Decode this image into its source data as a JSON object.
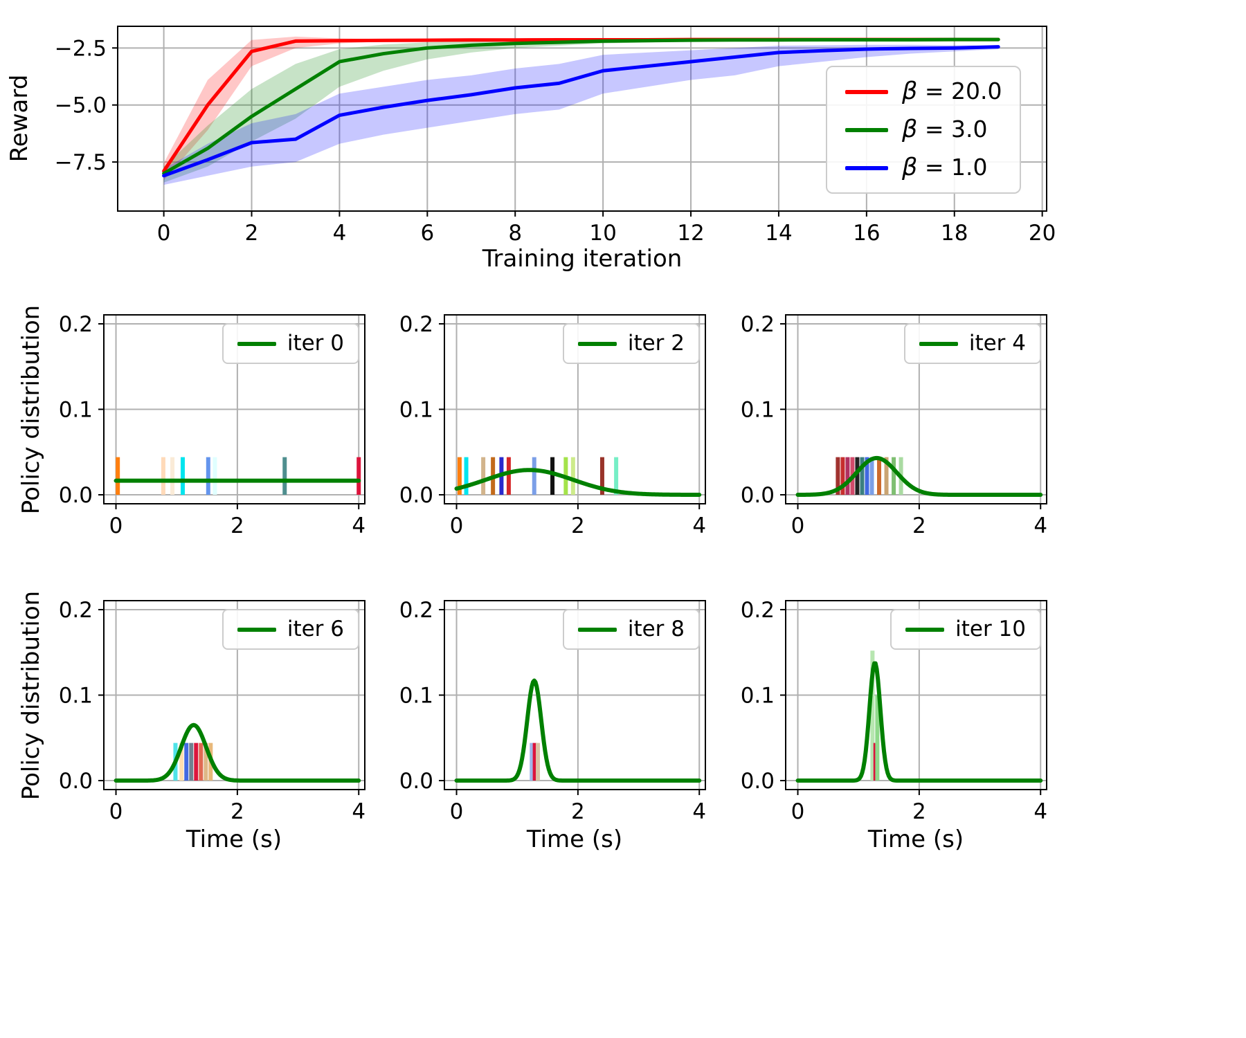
{
  "figure": {
    "background": "#ffffff",
    "grid_color": "#b0b0b0",
    "spine_color": "#000000",
    "curve_color": "#008000"
  },
  "chart_data": [
    {
      "id": "reward_curve",
      "type": "line",
      "title": "",
      "xlabel": "Training iteration",
      "ylabel": "Reward",
      "grid": true,
      "legend_loc": "center right",
      "xlim": [
        -1.05,
        20.1
      ],
      "ylim": [
        -9.65,
        -1.55
      ],
      "xticks": [
        {
          "v": 0,
          "label": "0"
        },
        {
          "v": 2,
          "label": "2"
        },
        {
          "v": 4,
          "label": "4"
        },
        {
          "v": 6,
          "label": "6"
        },
        {
          "v": 8,
          "label": "8"
        },
        {
          "v": 10,
          "label": "10"
        },
        {
          "v": 12,
          "label": "12"
        },
        {
          "v": 14,
          "label": "14"
        },
        {
          "v": 16,
          "label": "16"
        },
        {
          "v": 18,
          "label": "18"
        },
        {
          "v": 20,
          "label": "20"
        }
      ],
      "yticks": [
        {
          "v": -2.5,
          "label": "−2.5"
        },
        {
          "v": -5.0,
          "label": "−5.0"
        },
        {
          "v": -7.5,
          "label": "−7.5"
        }
      ],
      "x": [
        0,
        1,
        2,
        3,
        4,
        5,
        6,
        7,
        8,
        9,
        10,
        11,
        12,
        13,
        14,
        15,
        16,
        17,
        18,
        19
      ],
      "series": [
        {
          "name": "β = 20.0",
          "label_symbol": "β",
          "label_rest": " = 20.0",
          "color": "#ff0000",
          "band_alpha": 0.22,
          "mean": [
            -7.9,
            -5.0,
            -2.65,
            -2.2,
            -2.18,
            -2.17,
            -2.16,
            -2.15,
            -2.15,
            -2.14,
            -2.14,
            -2.14,
            -2.13,
            -2.13,
            -2.13,
            -2.13,
            -2.13,
            -2.13,
            -2.13,
            -2.13
          ],
          "upper": [
            -7.55,
            -3.9,
            -2.15,
            -2.0,
            -2.08,
            -2.12,
            -2.13,
            -2.12,
            -2.12,
            -2.12,
            -2.12,
            -2.12,
            -2.12,
            -2.12,
            -2.12,
            -2.12,
            -2.12,
            -2.12,
            -2.12,
            -2.12
          ],
          "lower": [
            -8.3,
            -6.1,
            -3.3,
            -2.5,
            -2.3,
            -2.22,
            -2.19,
            -2.18,
            -2.17,
            -2.16,
            -2.16,
            -2.15,
            -2.15,
            -2.14,
            -2.14,
            -2.14,
            -2.14,
            -2.14,
            -2.14,
            -2.14
          ]
        },
        {
          "name": "β = 3.0",
          "label_symbol": "β",
          "label_rest": " = 3.0",
          "color": "#008000",
          "band_alpha": 0.22,
          "mean": [
            -8.0,
            -6.9,
            -5.5,
            -4.3,
            -3.1,
            -2.75,
            -2.5,
            -2.38,
            -2.3,
            -2.25,
            -2.2,
            -2.18,
            -2.16,
            -2.15,
            -2.15,
            -2.14,
            -2.14,
            -2.14,
            -2.13,
            -2.13
          ],
          "upper": [
            -7.7,
            -5.9,
            -4.3,
            -3.2,
            -2.55,
            -2.35,
            -2.25,
            -2.2,
            -2.17,
            -2.15,
            -2.14,
            -2.13,
            -2.13,
            -2.12,
            -2.12,
            -2.12,
            -2.12,
            -2.12,
            -2.12,
            -2.12
          ],
          "lower": [
            -8.4,
            -7.7,
            -6.6,
            -5.6,
            -4.2,
            -3.5,
            -3.0,
            -2.7,
            -2.5,
            -2.4,
            -2.3,
            -2.26,
            -2.2,
            -2.18,
            -2.17,
            -2.16,
            -2.16,
            -2.15,
            -2.15,
            -2.14
          ]
        },
        {
          "name": "β = 1.0",
          "label_symbol": "β",
          "label_rest": " = 1.0",
          "color": "#0000ff",
          "band_alpha": 0.22,
          "mean": [
            -8.1,
            -7.4,
            -6.65,
            -6.5,
            -5.45,
            -5.1,
            -4.8,
            -4.55,
            -4.25,
            -4.05,
            -3.5,
            -3.3,
            -3.1,
            -2.9,
            -2.7,
            -2.62,
            -2.55,
            -2.52,
            -2.5,
            -2.45
          ],
          "upper": [
            -7.8,
            -6.7,
            -5.8,
            -5.4,
            -4.5,
            -4.2,
            -3.9,
            -3.7,
            -3.4,
            -3.2,
            -2.8,
            -2.7,
            -2.6,
            -2.5,
            -2.4,
            -2.38,
            -2.36,
            -2.36,
            -2.38,
            -2.4
          ],
          "lower": [
            -8.5,
            -8.1,
            -7.7,
            -7.5,
            -6.7,
            -6.3,
            -6.0,
            -5.7,
            -5.4,
            -5.2,
            -4.5,
            -4.2,
            -3.9,
            -3.7,
            -3.3,
            -3.1,
            -2.9,
            -2.75,
            -2.65,
            -2.55
          ]
        }
      ]
    },
    {
      "id": "policy_iter_0",
      "type": "line",
      "legend_label": "iter 0",
      "ylabel": "Policy distribution",
      "xlim": [
        -0.2,
        4.1
      ],
      "ylim": [
        -0.0105,
        0.2105
      ],
      "xticks": [
        {
          "v": 0,
          "label": "0"
        },
        {
          "v": 2,
          "label": "2"
        },
        {
          "v": 4,
          "label": "4"
        }
      ],
      "yticks": [
        {
          "v": 0,
          "label": "0.0"
        },
        {
          "v": 0.1,
          "label": "0.1"
        },
        {
          "v": 0.2,
          "label": "0.2"
        }
      ],
      "curve": {
        "shape": "flat",
        "value": 0.0165,
        "x_start": 0,
        "x_end": 4,
        "color": "#008000"
      },
      "bars": {
        "height_default": 0.044,
        "items": [
          {
            "x": 0.03,
            "color": "#ff7f0e"
          },
          {
            "x": 0.78,
            "color": "#ffdab9"
          },
          {
            "x": 0.93,
            "color": "#faebd7"
          },
          {
            "x": 1.1,
            "color": "#00e5ee"
          },
          {
            "x": 1.52,
            "color": "#6495ed"
          },
          {
            "x": 1.63,
            "color": "#e0ffff"
          },
          {
            "x": 2.78,
            "color": "#4f8f8f"
          },
          {
            "x": 4.0,
            "color": "#dc143c"
          }
        ]
      }
    },
    {
      "id": "policy_iter_2",
      "type": "line",
      "legend_label": "iter 2",
      "xlim": [
        -0.2,
        4.1
      ],
      "ylim": [
        -0.0105,
        0.2105
      ],
      "xticks": [
        {
          "v": 0,
          "label": "0"
        },
        {
          "v": 2,
          "label": "2"
        },
        {
          "v": 4,
          "label": "4"
        }
      ],
      "yticks": [
        {
          "v": 0,
          "label": "0.0"
        },
        {
          "v": 0.1,
          "label": "0.1"
        },
        {
          "v": 0.2,
          "label": "0.2"
        }
      ],
      "curve": {
        "shape": "gaussian",
        "center": 1.2,
        "sigma": 0.72,
        "peak": 0.029,
        "x_start": 0,
        "x_end": 4,
        "color": "#008000"
      },
      "bars": {
        "height_default": 0.044,
        "items": [
          {
            "x": 0.05,
            "color": "#ff7f0e"
          },
          {
            "x": 0.16,
            "color": "#00e5ee"
          },
          {
            "x": 0.44,
            "color": "#d2b48c"
          },
          {
            "x": 0.6,
            "color": "#c26a1b"
          },
          {
            "x": 0.74,
            "color": "#2929cc"
          },
          {
            "x": 0.86,
            "color": "#d62728"
          },
          {
            "x": 1.28,
            "color": "#7b9fe8"
          },
          {
            "x": 1.58,
            "color": "#111111"
          },
          {
            "x": 1.8,
            "color": "#a4e34a"
          },
          {
            "x": 1.92,
            "color": "#cdeb8b"
          },
          {
            "x": 2.4,
            "color": "#993329"
          },
          {
            "x": 2.63,
            "color": "#76eec6"
          }
        ]
      }
    },
    {
      "id": "policy_iter_4",
      "type": "line",
      "legend_label": "iter 4",
      "xlim": [
        -0.2,
        4.1
      ],
      "ylim": [
        -0.0105,
        0.2105
      ],
      "xticks": [
        {
          "v": 0,
          "label": "0"
        },
        {
          "v": 2,
          "label": "2"
        },
        {
          "v": 4,
          "label": "4"
        }
      ],
      "yticks": [
        {
          "v": 0,
          "label": "0.0"
        },
        {
          "v": 0.1,
          "label": "0.1"
        },
        {
          "v": 0.2,
          "label": "0.2"
        }
      ],
      "curve": {
        "shape": "gaussian",
        "center": 1.3,
        "sigma": 0.33,
        "peak": 0.043,
        "x_start": 0,
        "x_end": 4,
        "color": "#008000"
      },
      "bars": {
        "height_default": 0.044,
        "items": [
          {
            "x": 0.66,
            "color": "#a0322f"
          },
          {
            "x": 0.74,
            "color": "#c62e2e"
          },
          {
            "x": 0.82,
            "color": "#b03060"
          },
          {
            "x": 0.9,
            "color": "#d14a6a"
          },
          {
            "x": 0.98,
            "color": "#222222"
          },
          {
            "x": 1.06,
            "color": "#3b7f7f"
          },
          {
            "x": 1.14,
            "color": "#4169e1"
          },
          {
            "x": 1.22,
            "color": "#7b9fe8"
          },
          {
            "x": 1.34,
            "color": "#cd6a2d"
          },
          {
            "x": 1.46,
            "color": "#caa472"
          },
          {
            "x": 1.58,
            "color": "#7fbf72"
          },
          {
            "x": 1.7,
            "color": "#aadba2"
          }
        ]
      }
    },
    {
      "id": "policy_iter_6",
      "type": "line",
      "legend_label": "iter 6",
      "ylabel": "Policy distribution",
      "xlabel": "Time (s)",
      "xlim": [
        -0.2,
        4.1
      ],
      "ylim": [
        -0.0105,
        0.2105
      ],
      "xticks": [
        {
          "v": 0,
          "label": "0"
        },
        {
          "v": 2,
          "label": "2"
        },
        {
          "v": 4,
          "label": "4"
        }
      ],
      "yticks": [
        {
          "v": 0,
          "label": "0.0"
        },
        {
          "v": 0.1,
          "label": "0.1"
        },
        {
          "v": 0.2,
          "label": "0.2"
        }
      ],
      "curve": {
        "shape": "gaussian",
        "center": 1.28,
        "sigma": 0.205,
        "peak": 0.065,
        "x_start": 0,
        "x_end": 4,
        "color": "#008000"
      },
      "bars": {
        "height_default": 0.044,
        "items": [
          {
            "x": 0.98,
            "color": "#4fe3e8"
          },
          {
            "x": 1.08,
            "color": "#ffdead"
          },
          {
            "x": 1.16,
            "color": "#4169e1"
          },
          {
            "x": 1.24,
            "color": "#708090"
          },
          {
            "x": 1.32,
            "color": "#dc143c"
          },
          {
            "x": 1.4,
            "color": "#e06a52"
          },
          {
            "x": 1.48,
            "color": "#deb887"
          },
          {
            "x": 1.56,
            "color": "#e8b87a"
          }
        ]
      }
    },
    {
      "id": "policy_iter_8",
      "type": "line",
      "legend_label": "iter 8",
      "xlabel": "Time (s)",
      "xlim": [
        -0.2,
        4.1
      ],
      "ylim": [
        -0.0105,
        0.2105
      ],
      "xticks": [
        {
          "v": 0,
          "label": "0"
        },
        {
          "v": 2,
          "label": "2"
        },
        {
          "v": 4,
          "label": "4"
        }
      ],
      "yticks": [
        {
          "v": 0,
          "label": "0.0"
        },
        {
          "v": 0.1,
          "label": "0.1"
        },
        {
          "v": 0.2,
          "label": "0.2"
        }
      ],
      "curve": {
        "shape": "gaussian",
        "center": 1.28,
        "sigma": 0.115,
        "peak": 0.117,
        "x_start": 0,
        "x_end": 4,
        "color": "#008000"
      },
      "bars": {
        "height_default": 0.044,
        "items": [
          {
            "x": 1.24,
            "color": "#9fb6e8"
          },
          {
            "x": 1.29,
            "color": "#dc143c"
          },
          {
            "x": 1.34,
            "color": "#d9c2a3"
          }
        ]
      }
    },
    {
      "id": "policy_iter_10",
      "type": "line",
      "legend_label": "iter 10",
      "xlabel": "Time (s)",
      "xlim": [
        -0.2,
        4.1
      ],
      "ylim": [
        -0.0105,
        0.2105
      ],
      "xticks": [
        {
          "v": 0,
          "label": "0"
        },
        {
          "v": 2,
          "label": "2"
        },
        {
          "v": 4,
          "label": "4"
        }
      ],
      "yticks": [
        {
          "v": 0,
          "label": "0.0"
        },
        {
          "v": 0.1,
          "label": "0.1"
        },
        {
          "v": 0.2,
          "label": "0.2"
        }
      ],
      "curve": {
        "shape": "gaussian",
        "center": 1.27,
        "sigma": 0.09,
        "peak": 0.138,
        "x_start": 0,
        "x_end": 4,
        "color": "#008000"
      },
      "bars": {
        "height_default": 0.044,
        "items": [
          {
            "x": 1.23,
            "color": "#b7e6b0",
            "h": 0.152
          },
          {
            "x": 1.28,
            "color": "#dc143c"
          },
          {
            "x": 1.31,
            "color": "#8fd98a",
            "h": 0.1
          }
        ]
      }
    }
  ]
}
